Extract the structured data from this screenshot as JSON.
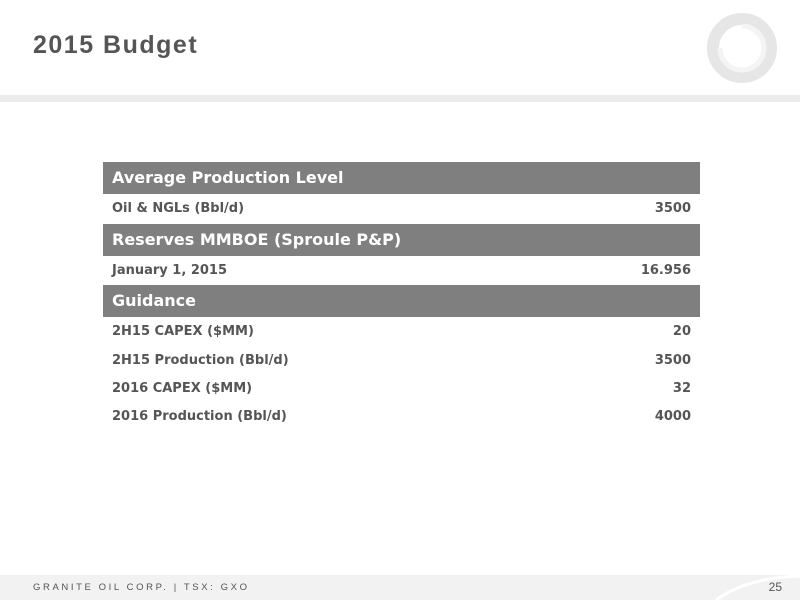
{
  "slide": {
    "title": "2015 Budget",
    "page_number": "25",
    "footer_text": "GRANITE OIL CORP. | TSX: GXO"
  },
  "table": {
    "sections": [
      {
        "header": "Average Production Level",
        "rows": [
          {
            "label": "Oil & NGLs (Bbl/d)",
            "value": "3500"
          }
        ]
      },
      {
        "header": "Reserves MMBOE (Sproule P&P)",
        "rows": [
          {
            "label": "January 1, 2015",
            "value": "16.956"
          }
        ]
      },
      {
        "header": "Guidance",
        "rows": [
          {
            "label": "2H15 CAPEX ($MM)",
            "value": "20"
          },
          {
            "label": "2H15 Production (Bbl/d)",
            "value": "3500"
          },
          {
            "label": "2016 CAPEX ($MM)",
            "value": "32"
          },
          {
            "label": "2016 Production (Bbl/d)",
            "value": "4000"
          }
        ]
      }
    ]
  },
  "colors": {
    "section_header_bg": "#7f7f7f",
    "text": "#555555",
    "header_band": "#ececec",
    "footer_band": "#f2f2f2"
  },
  "icons": {
    "logo": "ring-logo-icon"
  }
}
